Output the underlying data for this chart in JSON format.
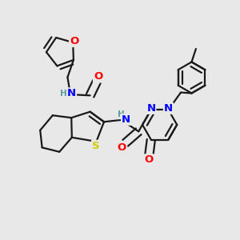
{
  "bg_color": "#e8e8e8",
  "bond_color": "#1a1a1a",
  "bond_width": 1.6,
  "atom_colors": {
    "O": "#ff0000",
    "N": "#0000ff",
    "S": "#cccc00",
    "H": "#5a9a9a",
    "C": "#1a1a1a"
  },
  "font_size": 8.5,
  "fig_size": [
    3.0,
    3.0
  ],
  "dpi": 100
}
